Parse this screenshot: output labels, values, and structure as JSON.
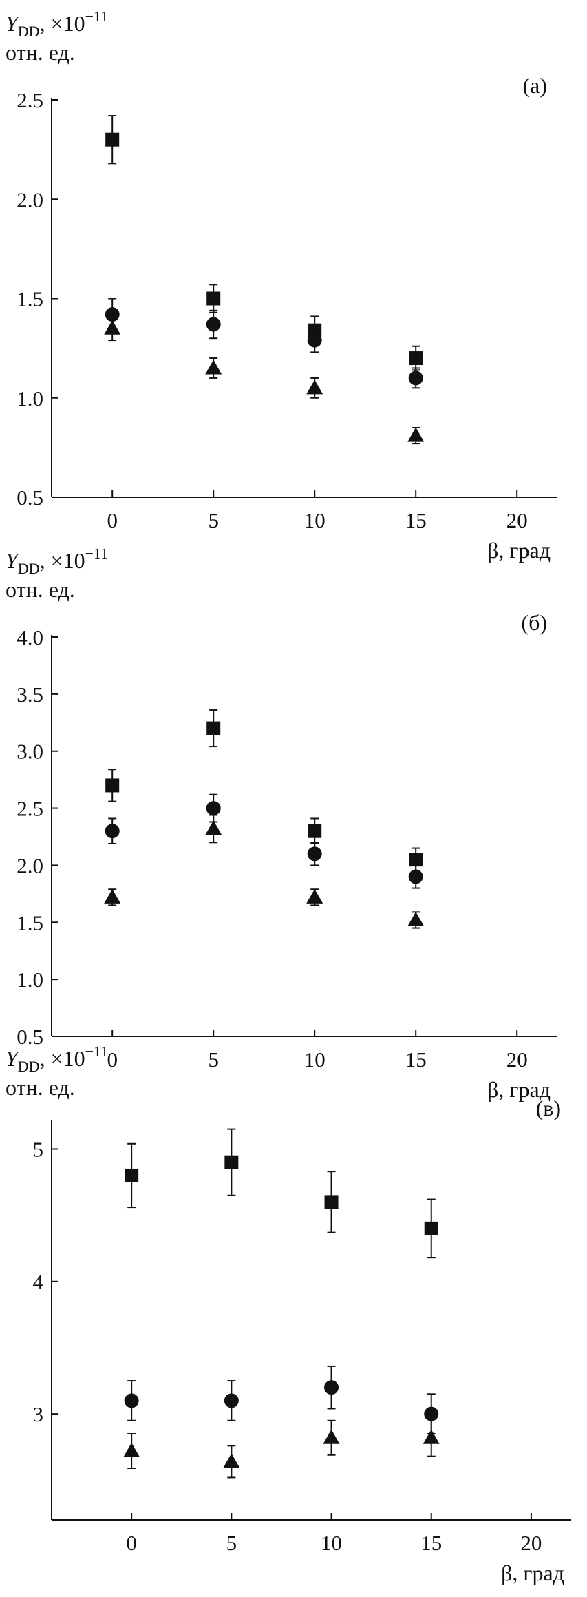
{
  "chart_data": [
    {
      "type": "scatter",
      "panel_label": "(а)",
      "ylabel_symbol": "Y",
      "ylabel_sub": "DD",
      "ylabel_mult": ", ×10",
      "ylabel_exp": "−11",
      "ylabel_unit": "отн. ед.",
      "xlabel": "β, град",
      "xlim": [
        -3,
        22
      ],
      "ylim": [
        0.5,
        2.5
      ],
      "xticks": [
        0,
        5,
        10,
        15,
        20
      ],
      "xtick_labels": [
        "0",
        "5",
        "10",
        "15",
        "20"
      ],
      "yticks": [
        0.5,
        1.0,
        1.5,
        2.0,
        2.5
      ],
      "ytick_labels": [
        "0.5",
        "1.0",
        "1.5",
        "2.0",
        "2.5"
      ],
      "series": [
        {
          "marker": "square",
          "x": [
            0,
            5,
            10,
            15
          ],
          "y": [
            2.3,
            1.5,
            1.34,
            1.2
          ],
          "err": [
            0.12,
            0.07,
            0.07,
            0.06
          ]
        },
        {
          "marker": "circle",
          "x": [
            0,
            5,
            10,
            15
          ],
          "y": [
            1.42,
            1.37,
            1.29,
            1.1
          ],
          "err": [
            0.08,
            0.07,
            0.06,
            0.05
          ]
        },
        {
          "marker": "triangle",
          "x": [
            0,
            5,
            10,
            15
          ],
          "y": [
            1.35,
            1.15,
            1.05,
            0.81
          ],
          "err": [
            0.06,
            0.05,
            0.05,
            0.04
          ]
        }
      ]
    },
    {
      "type": "scatter",
      "panel_label": "(б)",
      "ylabel_symbol": "Y",
      "ylabel_sub": "DD",
      "ylabel_mult": ", ×10",
      "ylabel_exp": "−11",
      "ylabel_unit": "отн. ед.",
      "xlabel": "β, град",
      "xlim": [
        -3,
        22
      ],
      "ylim": [
        0.5,
        4.0
      ],
      "xticks": [
        0,
        5,
        10,
        15,
        20
      ],
      "xtick_labels": [
        "0",
        "5",
        "10",
        "15",
        "20"
      ],
      "yticks": [
        0.5,
        1.0,
        1.5,
        2.0,
        2.5,
        3.0,
        3.5,
        4.0
      ],
      "ytick_labels": [
        "0.5",
        "1.0",
        "1.5",
        "2.0",
        "2.5",
        "3.0",
        "3.5",
        "4.0"
      ],
      "series": [
        {
          "marker": "square",
          "x": [
            0,
            5,
            10,
            15
          ],
          "y": [
            2.7,
            3.2,
            2.3,
            2.05
          ],
          "err": [
            0.14,
            0.16,
            0.11,
            0.1
          ]
        },
        {
          "marker": "circle",
          "x": [
            0,
            5,
            10,
            15
          ],
          "y": [
            2.3,
            2.5,
            2.1,
            1.9
          ],
          "err": [
            0.11,
            0.12,
            0.1,
            0.1
          ]
        },
        {
          "marker": "triangle",
          "x": [
            0,
            5,
            10,
            15
          ],
          "y": [
            1.72,
            2.32,
            1.72,
            1.52
          ],
          "err": [
            0.07,
            0.12,
            0.07,
            0.07
          ]
        }
      ]
    },
    {
      "type": "scatter",
      "panel_label": "(в)",
      "ylabel_symbol": "Y",
      "ylabel_sub": "DD",
      "ylabel_mult": ", ×10",
      "ylabel_exp": "−11",
      "ylabel_unit": "отн. ед.",
      "xlabel": "β, град",
      "xlim": [
        -4,
        22
      ],
      "ylim": [
        2.2,
        5.2
      ],
      "xticks": [
        0,
        5,
        10,
        15,
        20
      ],
      "xtick_labels": [
        "0",
        "5",
        "10",
        "15",
        "20"
      ],
      "yticks": [
        3,
        4,
        5
      ],
      "ytick_labels": [
        "3",
        "4",
        "5"
      ],
      "series": [
        {
          "marker": "square",
          "x": [
            0,
            5,
            10,
            15
          ],
          "y": [
            4.8,
            4.9,
            4.6,
            4.4
          ],
          "err": [
            0.24,
            0.25,
            0.23,
            0.22
          ]
        },
        {
          "marker": "circle",
          "x": [
            0,
            5,
            10,
            15
          ],
          "y": [
            3.1,
            3.1,
            3.2,
            3.0
          ],
          "err": [
            0.15,
            0.15,
            0.16,
            0.15
          ]
        },
        {
          "marker": "triangle",
          "x": [
            0,
            5,
            10,
            15
          ],
          "y": [
            2.72,
            2.64,
            2.82,
            2.82
          ],
          "err": [
            0.13,
            0.12,
            0.13,
            0.14
          ]
        }
      ]
    }
  ]
}
